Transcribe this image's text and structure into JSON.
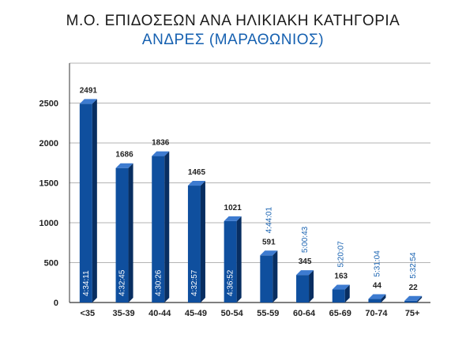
{
  "chart_data": {
    "type": "bar",
    "title": "Μ.Ο. ΕΠΙΔΟΣΕΩΝ ΑΝΑ ΗΛΙΚΙΑΚΗ ΚΑΤΗΓΟΡΙΑ",
    "subtitle": "ΑΝΔΡΕΣ (ΜΑΡΑΘΩΝΙΟΣ)",
    "categories": [
      "<35",
      "35-39",
      "40-44",
      "45-49",
      "50-54",
      "55-59",
      "60-64",
      "65-69",
      "70-74",
      "75+"
    ],
    "values": [
      2491,
      1686,
      1836,
      1465,
      1021,
      591,
      345,
      163,
      44,
      22
    ],
    "times": [
      "4:34:11",
      "4:32:45",
      "4:30:26",
      "4:32:57",
      "4:36:52",
      "4:44:01",
      "5:00:43",
      "5:20:07",
      "5:31:04",
      "5:32:54"
    ],
    "ylim": [
      0,
      3000
    ],
    "yticks": [
      0,
      500,
      1000,
      1500,
      2000,
      2500
    ],
    "grid": true,
    "colors": {
      "bar_front": "#0f4f9e",
      "bar_side": "#082e61",
      "bar_top": "#3d7bd0",
      "accent": "#1560b0"
    }
  }
}
